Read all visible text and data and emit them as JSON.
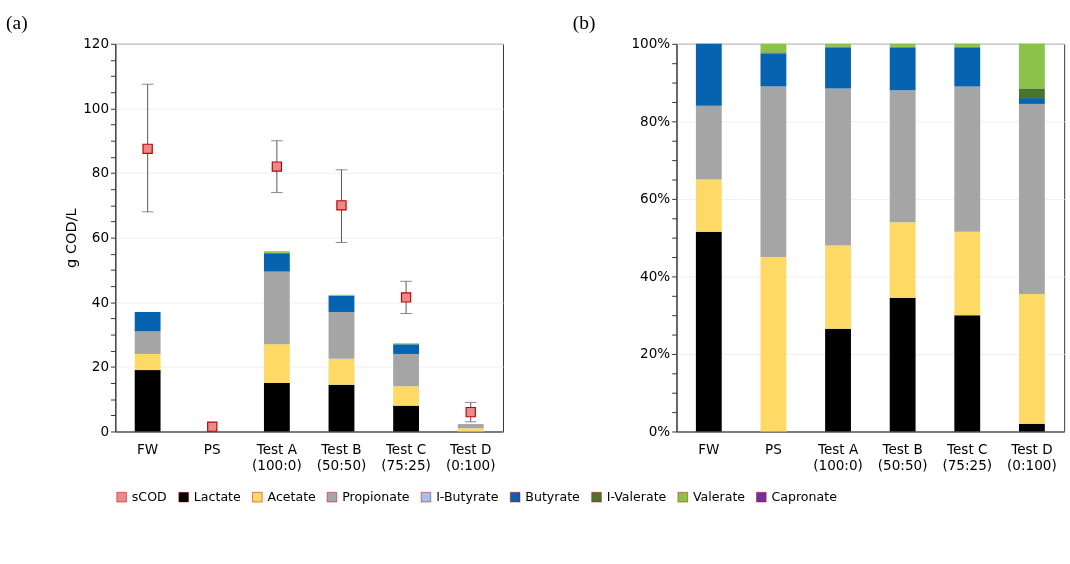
{
  "chart_data": [
    {
      "type": "bar",
      "title": "(a)",
      "ylabel": "g COD/L",
      "stacked": true,
      "grid": "y",
      "legend": "bottom",
      "categories": [
        "FW",
        "PS",
        "Test A\n(100:0)",
        "Test B\n(50:50)",
        "Test C\n(75:25)",
        "Test D\n(0:100)"
      ],
      "ylim": [
        0,
        120
      ],
      "yticks": [
        0,
        {
          "value": 5,
          "label": null
        },
        {
          "value": 10,
          "label": null
        },
        {
          "value": 15,
          "label": null
        },
        20,
        {
          "value": 25,
          "label": null
        },
        {
          "value": 30,
          "label": null
        },
        {
          "value": 35,
          "label": null
        },
        40,
        {
          "value": 45,
          "label": null
        },
        {
          "value": 50,
          "label": null
        },
        {
          "value": 55,
          "label": null
        },
        60,
        {
          "value": 65,
          "label": null
        },
        {
          "value": 70,
          "label": null
        },
        {
          "value": 75,
          "label": null
        },
        80,
        {
          "value": 85,
          "label": null
        },
        {
          "value": 90,
          "label": null
        },
        {
          "value": 95,
          "label": null
        },
        100,
        {
          "value": 105,
          "label": null
        },
        {
          "value": 110,
          "label": null
        },
        {
          "value": 115,
          "label": null
        },
        120
      ],
      "series": [
        {
          "name": "sCOD",
          "type": "scatter",
          "marker": "square",
          "color": "#e88a8a",
          "values": [
            87.5,
            1.5,
            82,
            70,
            41.5,
            6
          ],
          "errors": [
            [
              68,
              107.5
            ],
            null,
            [
              74,
              90
            ],
            [
              58.5,
              81
            ],
            [
              36.5,
              46.5
            ],
            [
              3,
              9
            ]
          ]
        },
        {
          "name": "Lactate",
          "color": "#000000",
          "values": [
            19,
            null,
            15,
            14.5,
            8,
            null
          ]
        },
        {
          "name": "Acetate",
          "color": "#ffd966",
          "values": [
            5,
            null,
            12,
            8,
            6,
            1
          ]
        },
        {
          "name": "Propionate",
          "color": "#a5a5a5",
          "values": [
            7,
            null,
            22.5,
            14.5,
            10,
            1.3
          ]
        },
        {
          "name": "I-Butyrate",
          "color": "#9dc3e6",
          "values": [
            null,
            null,
            null,
            null,
            null,
            null
          ]
        },
        {
          "name": "Butyrate",
          "color": "#0563b0",
          "values": [
            6,
            null,
            5.5,
            5,
            3,
            null
          ]
        },
        {
          "name": "I-Valerate",
          "color": "#48752c",
          "values": [
            0,
            null,
            0.3,
            0,
            0,
            null
          ]
        },
        {
          "name": "Valerate",
          "color": "#8bc34a",
          "values": [
            0,
            null,
            0.5,
            0.3,
            0.3,
            null
          ]
        },
        {
          "name": "Capronate",
          "color": "#7030a0",
          "values": [
            null,
            null,
            null,
            null,
            null,
            null
          ]
        }
      ]
    },
    {
      "type": "bar",
      "title": "(b)",
      "stacked": true,
      "grid": "y",
      "legend": "bottom",
      "categories": [
        "FW",
        "PS",
        "Test A\n(100:0)",
        "Test B\n(50:50)",
        "Test C\n(75:25)",
        "Test D\n(0:100)"
      ],
      "ylim": [
        0,
        100
      ],
      "yticks": [
        {
          "value": 0,
          "label": "0%"
        },
        {
          "value": 5,
          "label": null
        },
        {
          "value": 10,
          "label": null
        },
        {
          "value": 15,
          "label": null
        },
        {
          "value": 20,
          "label": "20%"
        },
        {
          "value": 25,
          "label": null
        },
        {
          "value": 30,
          "label": null
        },
        {
          "value": 35,
          "label": null
        },
        {
          "value": 40,
          "label": "40%"
        },
        {
          "value": 45,
          "label": null
        },
        {
          "value": 50,
          "label": null
        },
        {
          "value": 55,
          "label": null
        },
        {
          "value": 60,
          "label": "60%"
        },
        {
          "value": 65,
          "label": null
        },
        {
          "value": 70,
          "label": null
        },
        {
          "value": 75,
          "label": null
        },
        {
          "value": 80,
          "label": "80%"
        },
        {
          "value": 85,
          "label": null
        },
        {
          "value": 90,
          "label": null
        },
        {
          "value": 95,
          "label": null
        },
        {
          "value": 100,
          "label": "100%"
        }
      ],
      "series": [
        {
          "name": "Lactate",
          "color": "#000000",
          "values": [
            51.5,
            0,
            26.5,
            34.5,
            30,
            2
          ]
        },
        {
          "name": "Acetate",
          "color": "#ffd966",
          "values": [
            13.5,
            45,
            21.5,
            19.5,
            21.5,
            33.5
          ]
        },
        {
          "name": "Propionate",
          "color": "#a5a5a5",
          "values": [
            19,
            44,
            40.5,
            34,
            37.5,
            49
          ]
        },
        {
          "name": "Butyrate",
          "color": "#0563b0",
          "values": [
            16,
            8.5,
            10.5,
            11,
            10,
            1.5
          ]
        },
        {
          "name": "I-Valerate",
          "color": "#48752c",
          "values": [
            0,
            0.3,
            0.3,
            0.2,
            0.2,
            2.5
          ]
        },
        {
          "name": "Valerate",
          "color": "#8bc34a",
          "values": [
            0,
            2.2,
            0.7,
            0.8,
            0.8,
            11.5
          ]
        }
      ]
    }
  ]
}
